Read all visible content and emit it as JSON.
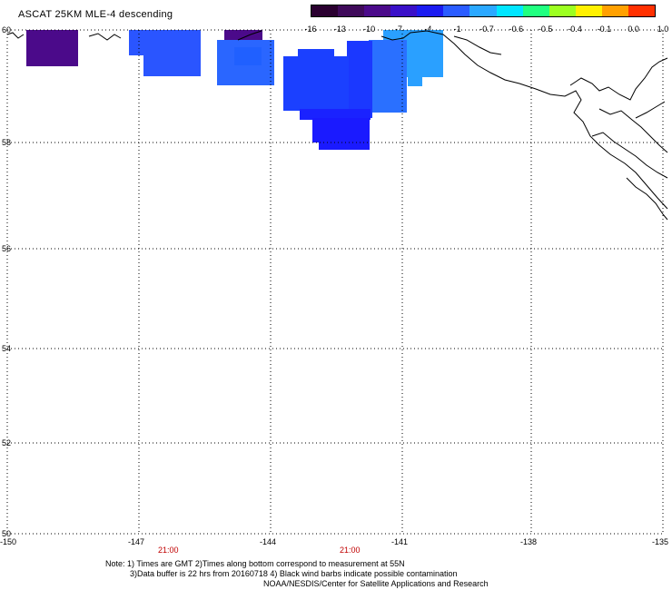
{
  "title": "ASCAT 25KM MLE-4 descending",
  "colorbar": {
    "labels": [
      "-16",
      "-13",
      "-10",
      "-7",
      "-4",
      "-1",
      "-0.7",
      "-0.6",
      "-0.5",
      "-0.4",
      "-0.1",
      "0.0",
      "1.0"
    ],
    "colors": [
      "#2a0030",
      "#3f0a5a",
      "#4b0a8a",
      "#3a10c8",
      "#1b1bf0",
      "#2a5cff",
      "#2aa8ff",
      "#00e6ff",
      "#20ff80",
      "#9cff20",
      "#fff000",
      "#ffa000",
      "#ff3000"
    ]
  },
  "axes": {
    "lon_labels": [
      "-150",
      "-147",
      "-144",
      "-141",
      "-138",
      "-135"
    ],
    "lat_labels": [
      "60",
      "58",
      "56",
      "54",
      "52",
      "50"
    ]
  },
  "times": [
    "21:00",
    "21:00"
  ],
  "notes": [
    "Note: 1) Times are GMT 2)Times along bottom correspond to measurement at 55N",
    "3)Data buffer is 22 hrs from 20160718 4) Black wind barbs indicate possible contamination",
    "NOAA/NESDIS/Center for Satellite Applications and Research"
  ]
}
